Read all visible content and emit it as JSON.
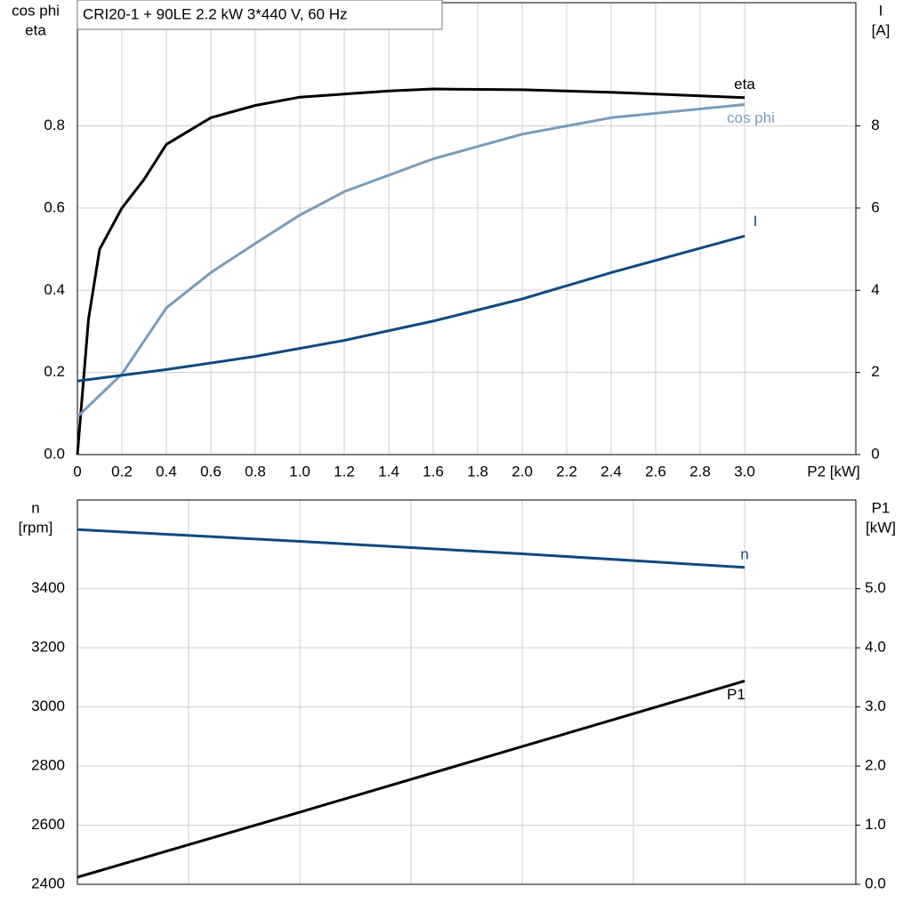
{
  "chart_data": [
    {
      "type": "line",
      "title": "CRI20-1 + 90LE   2.2 kW   3*440 V, 60 Hz",
      "ylabel": [
        "cos phi",
        "eta"
      ],
      "y2label": [
        "I",
        "[A]"
      ],
      "xlabel": "P2 [kW]",
      "xlim": [
        0,
        3.5
      ],
      "ylim": [
        0,
        1.1
      ],
      "y2lim": [
        0,
        11
      ],
      "xticks": [
        0,
        {
          "value": 0.2,
          "label": "0.2"
        },
        {
          "value": 0.4,
          "label": "0.4"
        },
        {
          "value": 0.6,
          "label": "0.6"
        },
        {
          "value": 0.8,
          "label": "0.8"
        },
        {
          "value": 1,
          "label": "1.0"
        },
        {
          "value": 1.2,
          "label": "1.2"
        },
        {
          "value": 1.4,
          "label": "1.4"
        },
        {
          "value": 1.6,
          "label": "1.6"
        },
        {
          "value": 1.8,
          "label": "1.8"
        },
        {
          "value": 2,
          "label": "2.0"
        },
        {
          "value": 2.2,
          "label": "2.2"
        },
        {
          "value": 2.4,
          "label": "2.4"
        },
        {
          "value": 2.6,
          "label": "2.6"
        },
        {
          "value": 2.8,
          "label": "2.8"
        },
        {
          "value": 3,
          "label": "3.0"
        }
      ],
      "show_xtick_labels": true,
      "yticks": [
        {
          "value": 0,
          "label": "0.0"
        },
        0.2,
        0.4,
        0.6,
        0.8
      ],
      "y2ticks": [
        0,
        2,
        4,
        6,
        8
      ],
      "grid": true,
      "series": [
        {
          "name": "eta",
          "color": "#000000",
          "x": [
            0,
            0.05,
            0.1,
            0.2,
            0.3,
            0.4,
            0.6,
            0.8,
            1.0,
            1.4,
            1.6,
            2.0,
            2.4,
            3.0
          ],
          "values": [
            0,
            0.33,
            0.5,
            0.6,
            0.67,
            0.755,
            0.82,
            0.85,
            0.87,
            0.885,
            0.89,
            0.888,
            0.882,
            0.869
          ]
        },
        {
          "name": "cos phi",
          "color": "#7a9cbb",
          "x": [
            0,
            0.2,
            0.4,
            0.6,
            0.8,
            1.0,
            1.2,
            1.6,
            2.0,
            2.4,
            3.0
          ],
          "values": [
            0.092,
            0.196,
            0.357,
            0.443,
            0.514,
            0.583,
            0.64,
            0.72,
            0.78,
            0.82,
            0.852
          ]
        },
        {
          "name": "I",
          "color": "#0f4a80",
          "axis": "y2",
          "x": [
            0,
            0.4,
            0.8,
            1.2,
            1.6,
            2.0,
            2.4,
            3.0
          ],
          "values": [
            1.79,
            2.07,
            2.39,
            2.78,
            3.25,
            3.79,
            4.43,
            5.32
          ]
        }
      ]
    },
    {
      "type": "line",
      "ylabel": [
        "n",
        "[rpm]"
      ],
      "y2label": [
        "P1",
        "[kW]"
      ],
      "xlim": [
        0,
        3.5
      ],
      "ylim": [
        2400,
        3700
      ],
      "y2lim": [
        0,
        6.5
      ],
      "xticks": [
        0,
        0.5,
        1,
        1.5,
        2,
        2.5,
        3,
        3.5
      ],
      "show_xtick_labels": false,
      "yticks": [
        2400,
        2600,
        2800,
        3000,
        3200,
        3400
      ],
      "y2ticks": [
        {
          "value": 0,
          "label": "0.0"
        },
        {
          "value": 1,
          "label": "1.0"
        },
        {
          "value": 2,
          "label": "2.0"
        },
        {
          "value": 3,
          "label": "3.0"
        },
        {
          "value": 4,
          "label": "4.0"
        },
        {
          "value": 5,
          "label": "5.0"
        }
      ],
      "grid": true,
      "series": [
        {
          "name": "n",
          "color": "#0f4a80",
          "x": [
            0,
            1,
            2,
            3
          ],
          "values": [
            3600,
            3560,
            3518,
            3472
          ]
        },
        {
          "name": "P1",
          "color": "#000000",
          "axis": "y2",
          "x": [
            0,
            1,
            2,
            3
          ],
          "values": [
            0.12,
            1.22,
            2.33,
            3.44
          ]
        }
      ]
    }
  ]
}
